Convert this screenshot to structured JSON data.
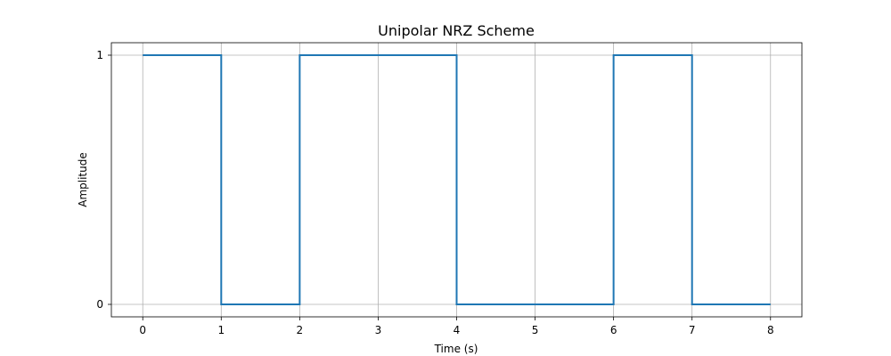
{
  "chart_data": {
    "type": "line",
    "step": "post",
    "title": "Unipolar NRZ Scheme",
    "xlabel": "Time (s)",
    "ylabel": "Amplitude",
    "xlim": [
      -0.4,
      8.4
    ],
    "ylim": [
      -0.05,
      1.05
    ],
    "xticks": [
      0,
      1,
      2,
      3,
      4,
      5,
      6,
      7,
      8
    ],
    "yticks": [
      0,
      1
    ],
    "grid": true,
    "series": [
      {
        "color": "#1f77b4",
        "x": [
          0,
          1,
          2,
          3,
          4,
          5,
          6,
          7,
          8
        ],
        "y": [
          1,
          0,
          1,
          1,
          0,
          0,
          1,
          0,
          0
        ]
      }
    ]
  }
}
